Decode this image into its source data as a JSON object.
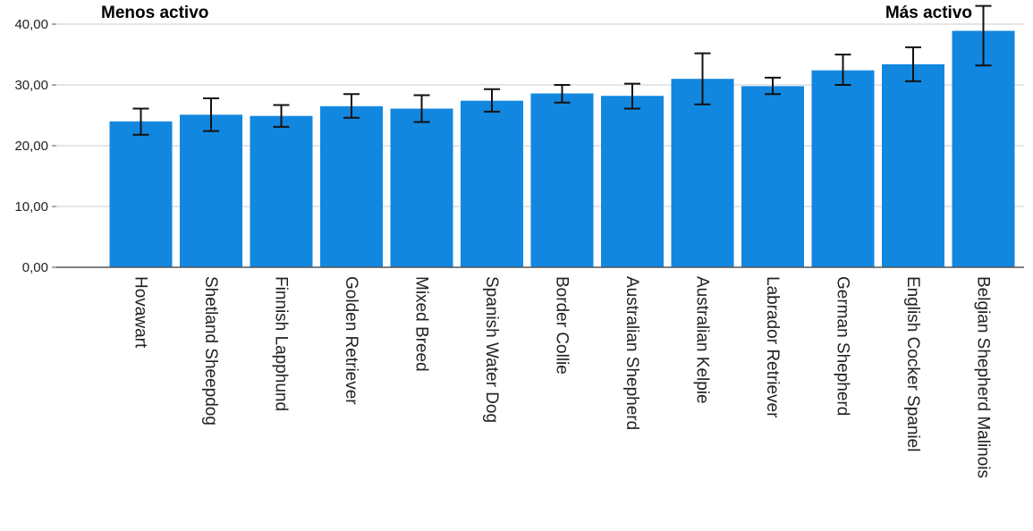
{
  "chart_data": {
    "type": "bar",
    "categories": [
      "Hovawart",
      "Shetland Sheepdog",
      "Finnish Lapphund",
      "Golden Retriever",
      "Mixed Breed",
      "Spanish Water Dog",
      "Border Collie",
      "Australian Shepherd",
      "Australian Kelpie",
      "Labrador Retriever",
      "German Shepherd",
      "English Cocker Spaniel",
      "Belgian Shepherd Malinois"
    ],
    "values": [
      24.0,
      25.1,
      24.9,
      26.5,
      26.1,
      27.4,
      28.6,
      28.2,
      31.0,
      29.8,
      32.4,
      33.4,
      38.9
    ],
    "error_low": [
      21.8,
      22.4,
      23.1,
      24.6,
      23.9,
      25.6,
      27.1,
      26.1,
      26.8,
      28.5,
      30.0,
      30.6,
      33.2
    ],
    "error_high": [
      26.1,
      27.8,
      26.7,
      28.5,
      28.3,
      29.3,
      30.0,
      30.2,
      35.2,
      31.2,
      35.0,
      36.2,
      43.0
    ],
    "yticks": [
      "0,00",
      "10,00",
      "20,00",
      "30,00",
      "40,00"
    ],
    "ytick_values": [
      0,
      10,
      20,
      30,
      40
    ],
    "ylim": [
      0,
      43.5
    ],
    "title": "",
    "xlabel": "",
    "ylabel": "",
    "grid": true,
    "annotations": {
      "left": "Menos activo",
      "right": "Más activo"
    },
    "colors": {
      "bar": "#1287E0",
      "error_bar": "#111111",
      "grid": "#cccccc",
      "axis": "#555555"
    }
  }
}
